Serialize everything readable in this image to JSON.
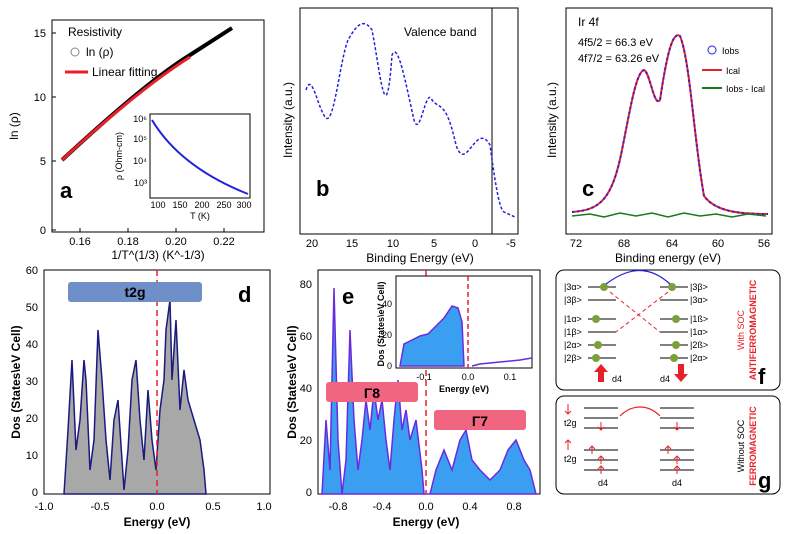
{
  "colors": {
    "blue": "#2222dd",
    "red": "#e8202a",
    "black": "#000000",
    "green": "#1a7a1a",
    "gray": "#a8a8a8",
    "navy": "#1a1a80",
    "cyan": "#3a9ff0",
    "purple": "#6a2adf",
    "pink": "#f06680",
    "steel": "#6f8fc8",
    "olive": "#7aa03a"
  },
  "panel_a": {
    "letter": "a",
    "title": "Resistivity",
    "legend": [
      "ln (ρ)",
      "Linear fitting"
    ],
    "ylabel": "ln (ρ)",
    "xlabel": "1/T^(1/3) (K^-1/3)",
    "xticks": [
      "0.16",
      "0.18",
      "0.20",
      "0.22"
    ],
    "yticks": [
      "0",
      "5",
      "10",
      "15"
    ],
    "inset": {
      "ylabel": "ρ (Ohm-cm)",
      "xlabel": "T (K)",
      "xticks": [
        "100",
        "150",
        "200",
        "250",
        "300"
      ],
      "yticks": [
        "10³",
        "10⁴",
        "10⁵",
        "10⁶"
      ]
    }
  },
  "panel_b": {
    "letter": "b",
    "title": "Valence band",
    "ylabel": "Intensity (a.u.)",
    "xlabel": "Binding Energy (eV)",
    "xticks": [
      "20",
      "15",
      "10",
      "5",
      "0",
      "-5"
    ]
  },
  "panel_c": {
    "letter": "c",
    "title": "Ir 4f",
    "line1": "4f5/2 = 66.3 eV",
    "line2": "4f7/2 = 63.26 eV",
    "legend": [
      "Iobs",
      "Ical",
      "Iobs - Ical"
    ],
    "ylabel": "Intensity (a.u.)",
    "xlabel": "Binding energy (eV)",
    "xticks": [
      "72",
      "68",
      "64",
      "60",
      "56"
    ]
  },
  "panel_d": {
    "letter": "d",
    "band": "t2g",
    "ylabel": "Dos (States\\eV Cell)",
    "xlabel": "Energy (eV)",
    "xticks": [
      "-1.0",
      "-0.5",
      "0.0",
      "0.5",
      "1.0"
    ],
    "yticks": [
      "0",
      "10",
      "20",
      "30",
      "40",
      "50",
      "60"
    ]
  },
  "panel_e": {
    "letter": "e",
    "band1": "Γ8",
    "band2": "Γ7",
    "ylabel": "Dos (States\\eV Cell)",
    "xlabel": "Energy (eV)",
    "xticks": [
      "-0.8",
      "-0.4",
      "0.0",
      "0.4",
      "0.8"
    ],
    "yticks": [
      "0",
      "20",
      "40",
      "60",
      "80"
    ],
    "inset": {
      "ylabel": "Dos (States\\eV Cell)",
      "xlabel": "Energy (eV)",
      "xticks": [
        "-0.1",
        "0.0",
        "0.1"
      ],
      "yticks": [
        "0",
        "20",
        "40"
      ]
    }
  },
  "panel_f": {
    "letter": "f",
    "side_label1": "With SOC",
    "side_label2": "ANTIFERROMAGNETIC",
    "left_states": [
      "|3α>",
      "|3β>",
      "|1α>",
      "|1β>",
      "|2α>",
      "|2β>"
    ],
    "right_states": [
      "|3β>",
      "|3α>",
      "|1ß>",
      "|1α>",
      "|2ß>",
      "|2α>"
    ],
    "d_label": "d4"
  },
  "panel_g": {
    "letter": "g",
    "side_label1": "Without SOC",
    "side_label2": "FERROMAGNETIC",
    "top_label": "t2g",
    "bottom_label": "t2g",
    "d_label": "d4"
  }
}
